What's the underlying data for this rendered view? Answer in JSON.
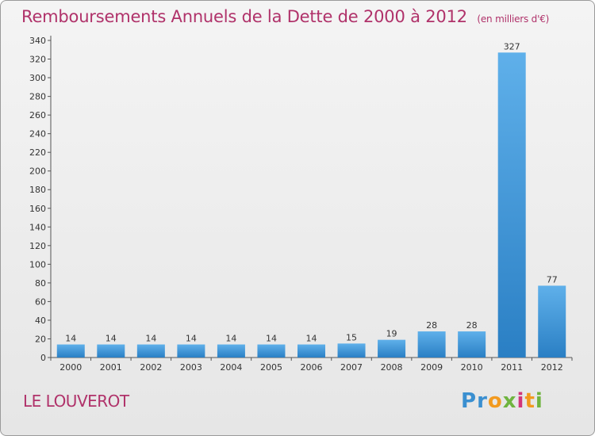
{
  "header": {
    "title": "Remboursements Annuels de la Dette de 2000 à 2012",
    "subtitle": "(en milliers d'€)"
  },
  "footer": {
    "town": "LE LOUVEROT",
    "logo_text": "Proxiti"
  },
  "colors": {
    "title": "#b0326a",
    "bar_light": "#5fb0ea",
    "bar_dark": "#2a7fc4",
    "axis": "#555555"
  },
  "chart_data": {
    "type": "bar",
    "title": "Remboursements Annuels de la Dette de 2000 à 2012",
    "xlabel": "",
    "ylabel": "",
    "categories": [
      "2000",
      "2001",
      "2002",
      "2003",
      "2004",
      "2005",
      "2006",
      "2007",
      "2008",
      "2009",
      "2010",
      "2011",
      "2012"
    ],
    "values": [
      14,
      14,
      14,
      14,
      14,
      14,
      14,
      15,
      19,
      28,
      28,
      327,
      77
    ],
    "ylim": [
      0,
      340
    ],
    "yticks": [
      0,
      20,
      40,
      60,
      80,
      100,
      120,
      140,
      160,
      180,
      200,
      220,
      240,
      260,
      280,
      300,
      320,
      340
    ],
    "grid": false,
    "legend": "none"
  }
}
